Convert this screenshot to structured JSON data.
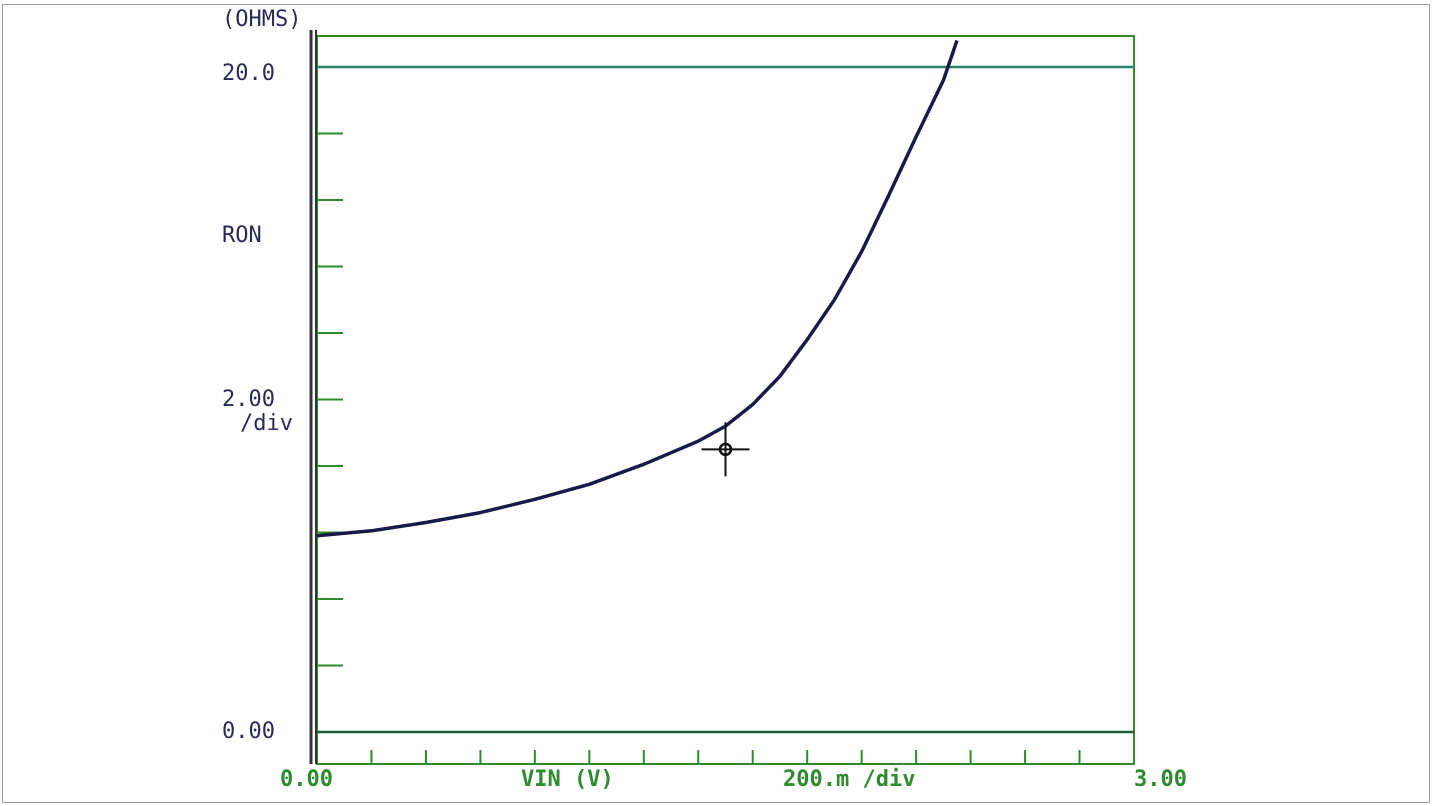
{
  "chart_data": {
    "type": "line",
    "title": "",
    "y_unit": "(OHMS)",
    "ylabel": "RON",
    "y_div_value": "2.00",
    "y_div_suffix": "/div",
    "y_top_label": "20.0",
    "y_bottom_label": "0.00",
    "xlabel": "VIN (V)",
    "x_div_label": "200.m /div",
    "x_left_label": "0.00",
    "x_right_label": "3.00",
    "xlim": [
      0,
      3.0
    ],
    "ylim": [
      0,
      20.0
    ],
    "x_major_divisions": 15,
    "y_major_divisions": 10,
    "grid": false,
    "colors": {
      "frame": "#2e8b2e",
      "curve": "#1a1a4a",
      "text": "#2a2a55"
    },
    "series": [
      {
        "x": [
          0.0,
          0.2,
          0.4,
          0.6,
          0.8,
          1.0,
          1.2,
          1.4,
          1.5,
          1.6,
          1.7,
          1.8,
          1.9,
          2.0,
          2.1,
          2.2,
          2.3,
          2.35
        ],
        "y": [
          5.9,
          6.05,
          6.3,
          6.6,
          7.0,
          7.45,
          8.05,
          8.75,
          9.2,
          9.85,
          10.7,
          11.8,
          13.0,
          14.45,
          16.15,
          17.9,
          19.6,
          20.8
        ]
      }
    ],
    "cursor": {
      "x": 1.5,
      "y": 8.5
    }
  }
}
